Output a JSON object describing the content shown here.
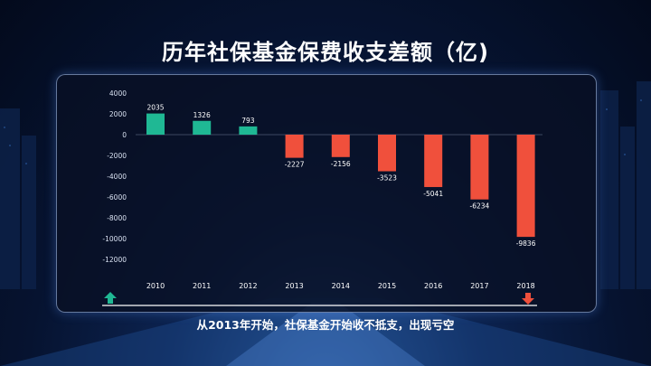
{
  "title": "历年社保基金保费收支差额（亿)",
  "caption": "从2013年开始，社保基金开始收不抵支，出现亏空",
  "colors": {
    "positive": "#1fb894",
    "negative": "#f0503c",
    "text": "#ffffff"
  },
  "chart_data": {
    "type": "bar",
    "title": "历年社保基金保费收支差额（亿)",
    "categories": [
      "2010",
      "2011",
      "2012",
      "2013",
      "2014",
      "2015",
      "2016",
      "2017",
      "2018"
    ],
    "values": [
      2035,
      1326,
      793,
      -2227,
      -2156,
      -3523,
      -5041,
      -6234,
      -9836
    ],
    "data_labels": [
      "2035",
      "1326",
      "793",
      "-2227",
      "-2156",
      "-3523",
      "-5041",
      "-6234",
      "-9836"
    ],
    "yticks": [
      "4000",
      "2000",
      "0",
      "-2000",
      "-4000",
      "-6000",
      "-8000",
      "-10000",
      "-12000"
    ],
    "ylim": [
      -12000,
      4000
    ],
    "xlabel": "",
    "ylabel": "",
    "grid": false,
    "markers": [
      {
        "name": "up-arrow-icon",
        "category": "2010",
        "direction": "up"
      },
      {
        "name": "down-arrow-icon",
        "category": "2018",
        "direction": "down"
      }
    ]
  }
}
